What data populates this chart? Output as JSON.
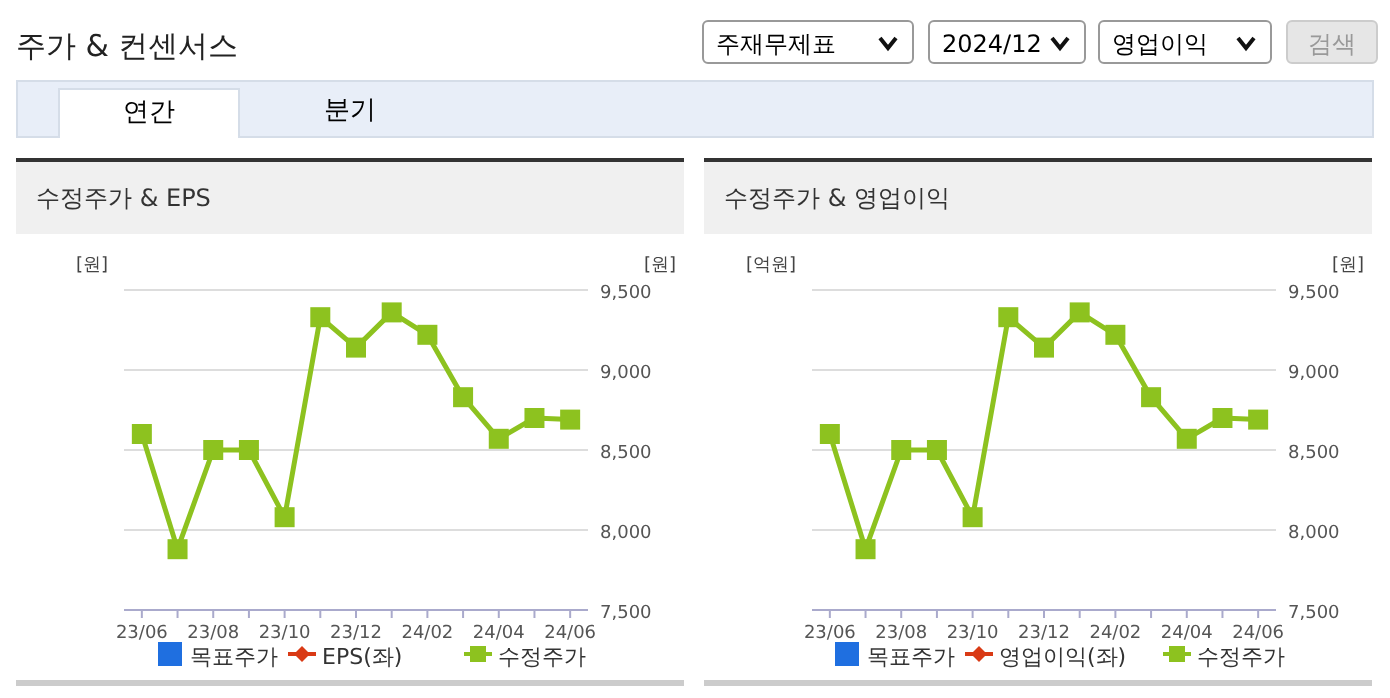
{
  "chart_data": [
    {
      "type": "line",
      "title": "수정주가 & EPS",
      "ylabel": "[원]",
      "y2label": "[원]",
      "annotations": [
        "주가 & 컨센서스",
        "주재무제표",
        "2024/12",
        "영업이익",
        "검색",
        "연간",
        "분기"
      ],
      "categories": [
        "23/06",
        null,
        "23/08",
        null,
        "23/10",
        null,
        "23/12",
        null,
        "24/02",
        null,
        "24/04",
        null,
        "24/06"
      ],
      "y2lim": [
        7500,
        9500
      ],
      "y2ticks": [
        {
          "value": 7500,
          "label": "7,500"
        },
        {
          "value": 8000,
          "label": "8,000"
        },
        {
          "value": 8500,
          "label": "8,500"
        },
        {
          "value": 9000,
          "label": "9,000"
        },
        {
          "value": 9500,
          "label": "9,500"
        }
      ],
      "grid": "y",
      "legend": "bottom",
      "series": [
        {
          "name": "목표주가",
          "type": "scatter",
          "color": "#1f6fe0",
          "marker": "square",
          "values": [
            null,
            null,
            null,
            null,
            null,
            null,
            null,
            null,
            null,
            null,
            null,
            null,
            null
          ]
        },
        {
          "name": "EPS(좌)",
          "color": "#d93a15",
          "marker": "diamond",
          "values": [
            null,
            null,
            null,
            null,
            null,
            null,
            null,
            null,
            null,
            null,
            null,
            null,
            null
          ]
        },
        {
          "name": "수정주가",
          "color": "#8dc21f",
          "marker": "square",
          "axis": "y2",
          "values": [
            8600,
            7880,
            8500,
            8500,
            8080,
            9330,
            9140,
            9360,
            9220,
            8830,
            8570,
            8700,
            8690
          ]
        }
      ]
    },
    {
      "type": "line",
      "title": "수정주가 & 영업이익",
      "ylabel": "[억원]",
      "y2label": "[원]",
      "categories": [
        "23/06",
        null,
        "23/08",
        null,
        "23/10",
        null,
        "23/12",
        null,
        "24/02",
        null,
        "24/04",
        null,
        "24/06"
      ],
      "y2lim": [
        7500,
        9500
      ],
      "y2ticks": [
        {
          "value": 7500,
          "label": "7,500"
        },
        {
          "value": 8000,
          "label": "8,000"
        },
        {
          "value": 8500,
          "label": "8,500"
        },
        {
          "value": 9000,
          "label": "9,000"
        },
        {
          "value": 9500,
          "label": "9,500"
        }
      ],
      "grid": "y",
      "legend": "bottom",
      "series": [
        {
          "name": "목표주가",
          "type": "scatter",
          "color": "#1f6fe0",
          "marker": "square",
          "values": [
            null,
            null,
            null,
            null,
            null,
            null,
            null,
            null,
            null,
            null,
            null,
            null,
            null
          ]
        },
        {
          "name": "영업이익(좌)",
          "color": "#d93a15",
          "marker": "diamond",
          "values": [
            null,
            null,
            null,
            null,
            null,
            null,
            null,
            null,
            null,
            null,
            null,
            null,
            null
          ]
        },
        {
          "name": "수정주가",
          "color": "#8dc21f",
          "marker": "square",
          "axis": "y2",
          "values": [
            8600,
            7880,
            8500,
            8500,
            8080,
            9330,
            9140,
            9360,
            9220,
            8830,
            8570,
            8700,
            8690
          ]
        }
      ]
    }
  ]
}
